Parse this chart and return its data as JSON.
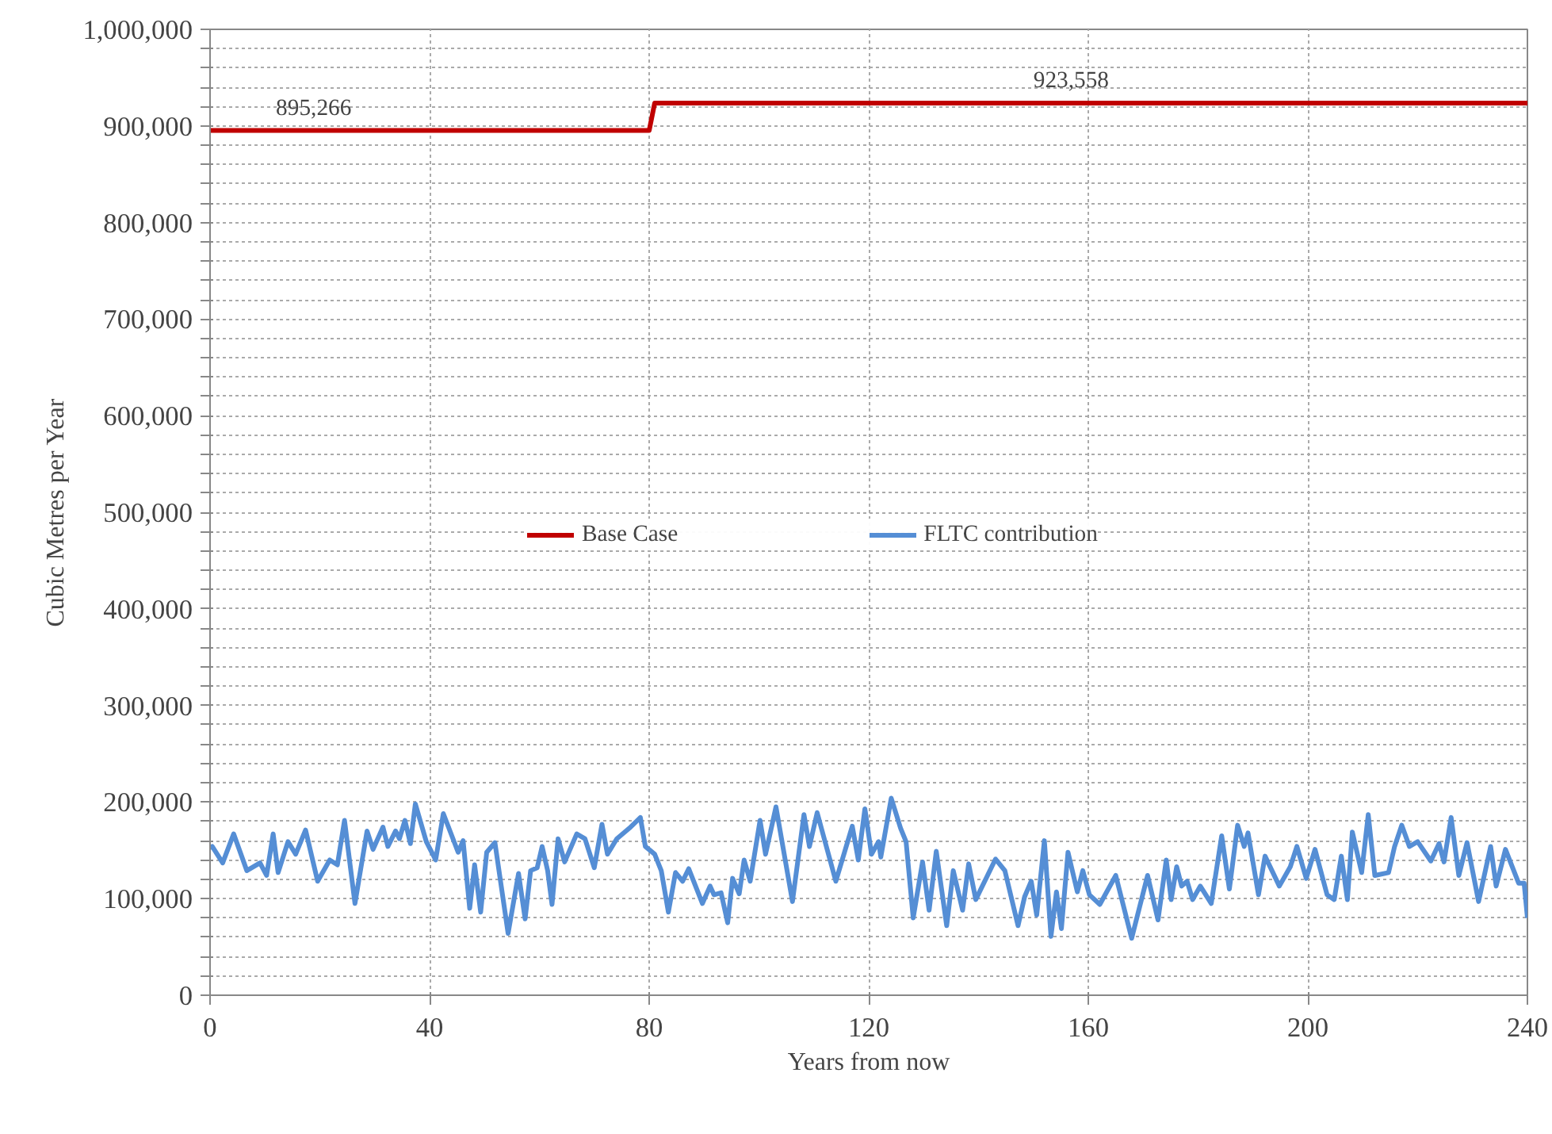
{
  "chart_data": {
    "type": "line",
    "xlabel": "Years from now",
    "ylabel": "Cubic Metres per Year",
    "xlim": [
      0,
      240
    ],
    "xticks": [
      0,
      40,
      80,
      120,
      160,
      200,
      240
    ],
    "ylim": [
      0,
      1000000
    ],
    "yticks": [
      {
        "value": 0,
        "label": "0"
      },
      {
        "value": 20000,
        "label": null
      },
      {
        "value": 40000,
        "label": null
      },
      {
        "value": 60000,
        "label": null
      },
      {
        "value": 80000,
        "label": null
      },
      {
        "value": 100000,
        "label": "100,000"
      },
      {
        "value": 120000,
        "label": null
      },
      {
        "value": 140000,
        "label": null
      },
      {
        "value": 160000,
        "label": null
      },
      {
        "value": 180000,
        "label": null
      },
      {
        "value": 200000,
        "label": "200,000"
      },
      {
        "value": 220000,
        "label": null
      },
      {
        "value": 240000,
        "label": null
      },
      {
        "value": 260000,
        "label": null
      },
      {
        "value": 280000,
        "label": null
      },
      {
        "value": 300000,
        "label": "300,000"
      },
      {
        "value": 320000,
        "label": null
      },
      {
        "value": 340000,
        "label": null
      },
      {
        "value": 360000,
        "label": null
      },
      {
        "value": 380000,
        "label": null
      },
      {
        "value": 400000,
        "label": "400,000"
      },
      {
        "value": 420000,
        "label": null
      },
      {
        "value": 440000,
        "label": null
      },
      {
        "value": 460000,
        "label": null
      },
      {
        "value": 480000,
        "label": null
      },
      {
        "value": 500000,
        "label": "500,000"
      },
      {
        "value": 520000,
        "label": null
      },
      {
        "value": 540000,
        "label": null
      },
      {
        "value": 560000,
        "label": null
      },
      {
        "value": 580000,
        "label": null
      },
      {
        "value": 600000,
        "label": "600,000"
      },
      {
        "value": 620000,
        "label": null
      },
      {
        "value": 640000,
        "label": null
      },
      {
        "value": 660000,
        "label": null
      },
      {
        "value": 680000,
        "label": null
      },
      {
        "value": 700000,
        "label": "700,000"
      },
      {
        "value": 720000,
        "label": null
      },
      {
        "value": 740000,
        "label": null
      },
      {
        "value": 760000,
        "label": null
      },
      {
        "value": 780000,
        "label": null
      },
      {
        "value": 800000,
        "label": "800,000"
      },
      {
        "value": 820000,
        "label": null
      },
      {
        "value": 840000,
        "label": null
      },
      {
        "value": 860000,
        "label": null
      },
      {
        "value": 880000,
        "label": null
      },
      {
        "value": 900000,
        "label": "900,000"
      },
      {
        "value": 920000,
        "label": null
      },
      {
        "value": 940000,
        "label": null
      },
      {
        "value": 960000,
        "label": null
      },
      {
        "value": 980000,
        "label": null
      },
      {
        "value": 1000000,
        "label": "1,000,000"
      }
    ],
    "grid": true,
    "legend": "center",
    "marker": "none",
    "line_style": "solid",
    "annotations": [
      {
        "text": "895,266",
        "x": 12,
        "y": 895266
      },
      {
        "text": "923,558",
        "x": 150,
        "y": 923558
      }
    ],
    "series": [
      {
        "name": "Base Case",
        "color": "#c00000",
        "x": [
          0,
          80,
          81,
          240
        ],
        "values": [
          895266,
          895266,
          923558,
          923558
        ]
      },
      {
        "name": "FLTC contribution",
        "color": "#558ed5",
        "x": [
          0,
          0.4,
          2.3,
          4.3,
          6.7,
          9.1,
          10.3,
          11.5,
          12.4,
          14.2,
          15.6,
          17.4,
          19.6,
          21.8,
          23.2,
          24.5,
          26.4,
          28.6,
          29.7,
          31.5,
          32.4,
          33.8,
          34.5,
          35.5,
          36.5,
          37.4,
          39.4,
          41.1,
          42.5,
          45.2,
          46.1,
          47.3,
          48.2,
          49.3,
          50.4,
          51.9,
          54.3,
          56.2,
          57.4,
          58.4,
          59.6,
          60.5,
          61.5,
          62.3,
          63.4,
          64.6,
          66.8,
          68.3,
          70.0,
          71.4,
          72.4,
          74.1,
          76.4,
          78.4,
          79.3,
          81.0,
          82.2,
          83.5,
          84.8,
          86.1,
          87.2,
          89.7,
          91.1,
          91.8,
          93.1,
          94.3,
          95.2,
          96.4,
          97.3,
          98.4,
          100.2,
          101.2,
          103.1,
          106.1,
          108.2,
          109.2,
          110.6,
          114.0,
          117.0,
          118.1,
          119.3,
          120.5,
          121.8,
          122.2,
          124.1,
          125.8,
          126.8,
          128.1,
          129.8,
          131.0,
          132.3,
          134.2,
          135.4,
          137.1,
          138.2,
          139.5,
          143.1,
          144.8,
          147.2,
          148.4,
          149.6,
          150.6,
          152.0,
          153.2,
          154.2,
          155.1,
          156.3,
          158.0,
          159.0,
          160.2,
          162.1,
          165.0,
          167.9,
          170.8,
          172.7,
          174.2,
          175.1,
          176.1,
          177.0,
          178.0,
          179.0,
          180.4,
          182.4,
          184.3,
          185.7,
          187.2,
          188.4,
          189.1,
          191.0,
          192.2,
          194.8,
          196.8,
          198.0,
          199.7,
          201.3,
          203.5,
          204.8,
          206.1,
          207.2,
          208.1,
          209.8,
          211.0,
          212.2,
          214.7,
          215.8,
          217.1,
          218.5,
          220.0,
          222.4,
          223.9,
          224.8,
          226.1,
          227.5,
          229.0,
          231.1,
          233.3,
          234.3,
          236.0,
          238.4,
          239.4,
          240
        ],
        "values": [
          152000,
          154000,
          137000,
          167000,
          129000,
          137000,
          124000,
          167000,
          127000,
          159000,
          146000,
          171000,
          118000,
          140000,
          135000,
          181000,
          95000,
          170000,
          151000,
          174000,
          154000,
          170000,
          162000,
          181000,
          157000,
          198000,
          159000,
          140000,
          188000,
          148000,
          160000,
          90000,
          135000,
          86000,
          148000,
          158000,
          64000,
          126000,
          79000,
          129000,
          132000,
          154000,
          129000,
          94000,
          162000,
          138000,
          167000,
          162000,
          132000,
          177000,
          146000,
          162000,
          173000,
          184000,
          154000,
          146000,
          129000,
          86000,
          127000,
          118000,
          131000,
          95000,
          113000,
          104000,
          106000,
          75000,
          121000,
          105000,
          140000,
          118000,
          181000,
          146000,
          195000,
          97000,
          187000,
          154000,
          189000,
          118000,
          175000,
          140000,
          193000,
          146000,
          159000,
          143000,
          204000,
          173000,
          159000,
          80000,
          138000,
          88000,
          149000,
          72000,
          129000,
          88000,
          136000,
          99000,
          141000,
          129000,
          72000,
          102000,
          118000,
          83000,
          160000,
          61000,
          107000,
          69000,
          148000,
          107000,
          129000,
          104000,
          94000,
          124000,
          59000,
          124000,
          78000,
          140000,
          99000,
          133000,
          113000,
          118000,
          99000,
          113000,
          95000,
          165000,
          110000,
          176000,
          154000,
          168000,
          104000,
          144000,
          113000,
          133000,
          154000,
          121000,
          151000,
          104000,
          99000,
          144000,
          99000,
          169000,
          127000,
          187000,
          124000,
          127000,
          154000,
          176000,
          154000,
          159000,
          139000,
          157000,
          138000,
          184000,
          124000,
          158000,
          97000,
          154000,
          113000,
          151000,
          116000,
          116000,
          80000
        ]
      }
    ]
  }
}
